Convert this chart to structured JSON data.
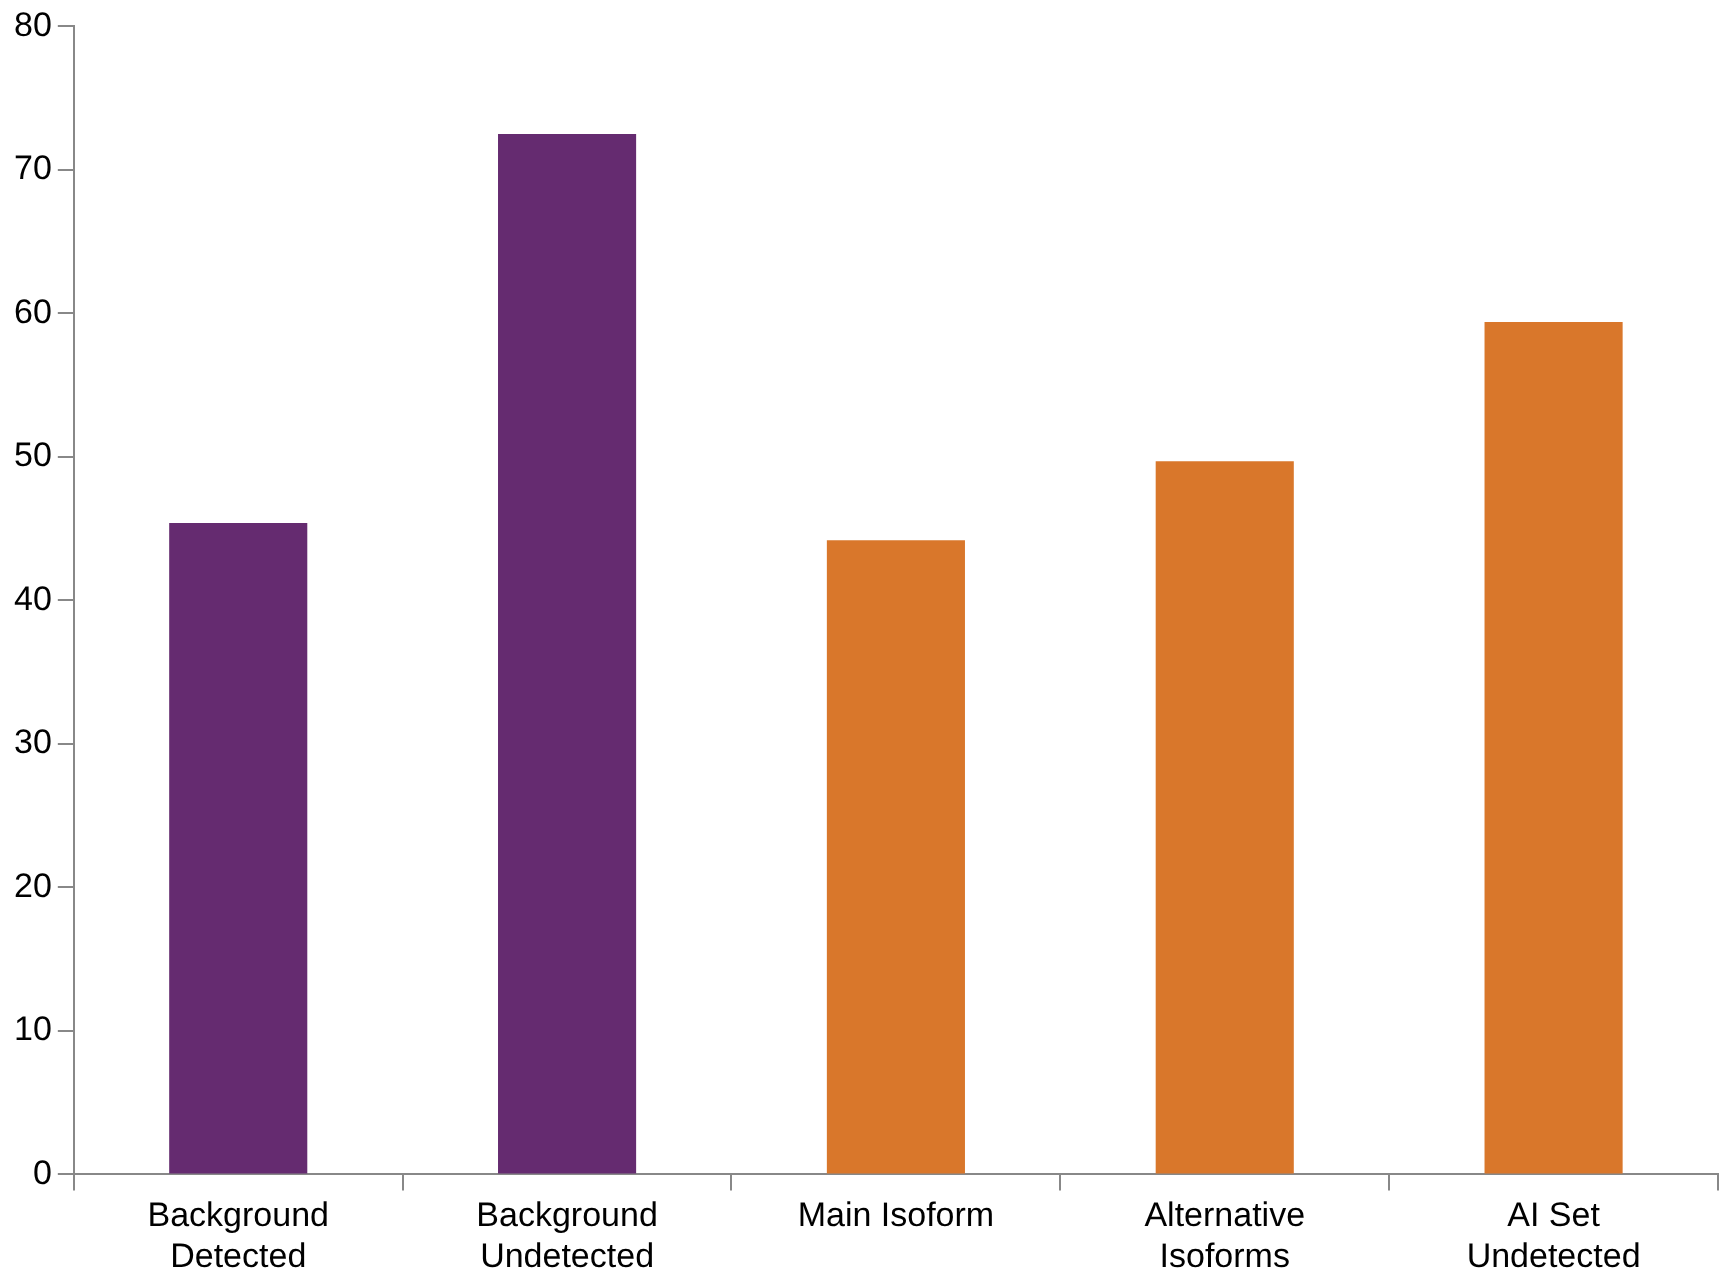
{
  "chart_data": {
    "type": "bar",
    "categories": [
      "Background\nDetected",
      "Background\nUndetected",
      "Main Isoform",
      "Alternative\nIsoforms",
      "AI Set\nUndetected"
    ],
    "values": [
      45.4,
      72.5,
      44.2,
      49.7,
      59.4
    ],
    "colors": [
      "#652b70",
      "#652b70",
      "#d9772b",
      "#d9772b",
      "#d9772b"
    ],
    "ylim": [
      0,
      80
    ],
    "yticks": [
      0,
      10,
      20,
      30,
      40,
      50,
      60,
      70,
      80
    ],
    "grid": false,
    "legend": false
  }
}
